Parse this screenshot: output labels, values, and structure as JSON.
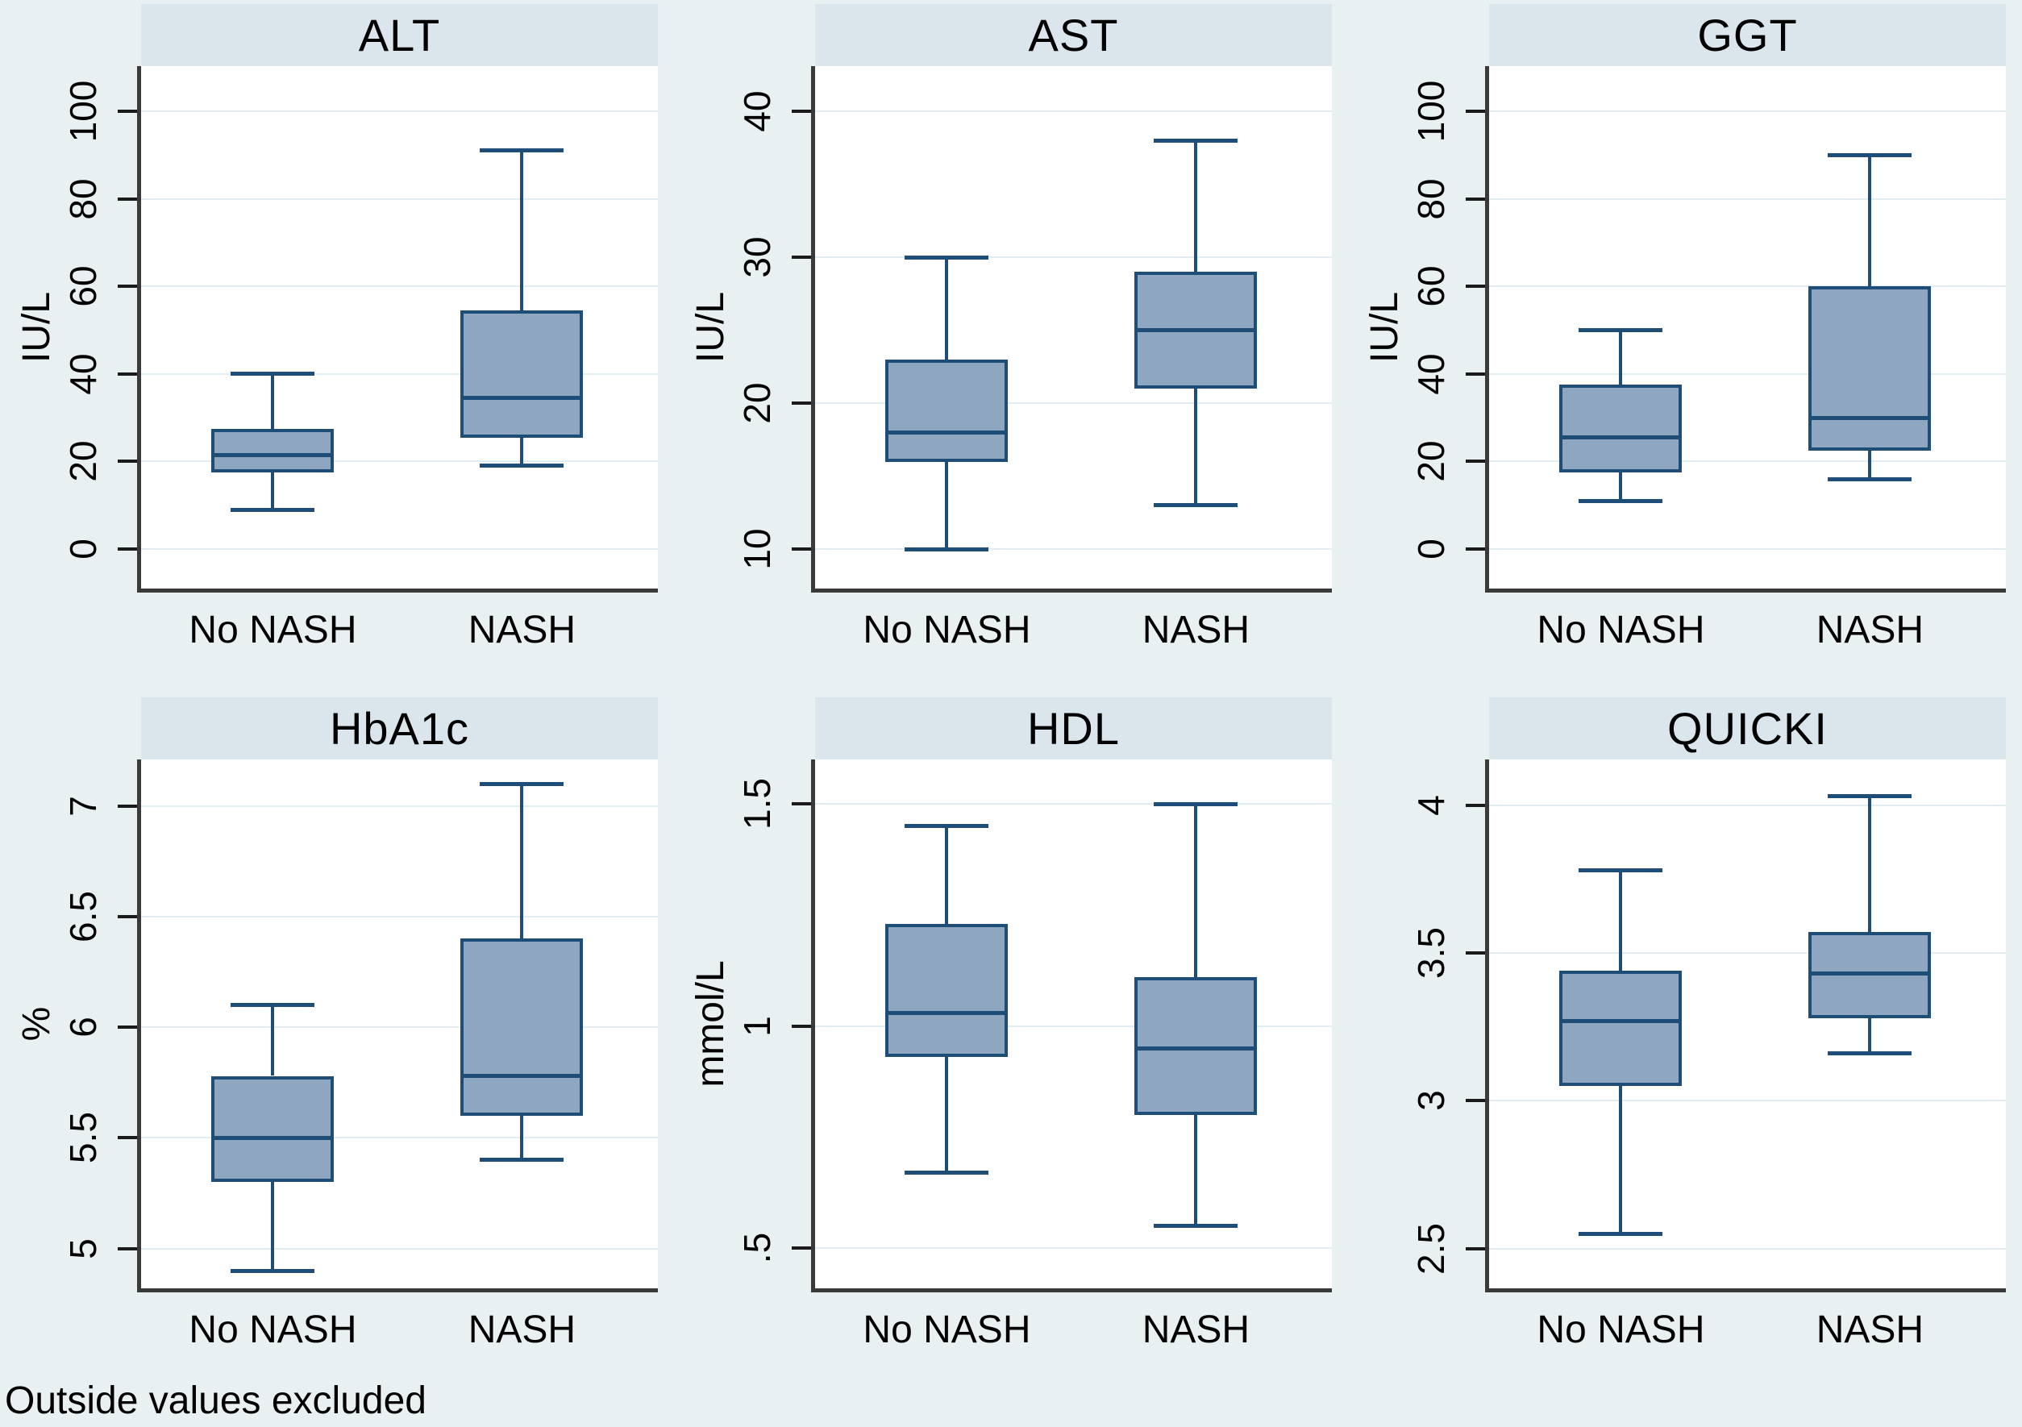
{
  "note": "Outside values excluded",
  "group_labels": [
    "No NASH",
    "NASH"
  ],
  "colors": {
    "page_bg": "#e9f0f2",
    "band_bg": "#dae6ec",
    "plot_bg": "#ffffff",
    "grid": "#e2edf2",
    "axis": "#3a3a3a",
    "tick": "#1a1a1a",
    "box_fill": "#8fa6c0",
    "box_stroke": "#1e4d78",
    "text": "#000000"
  },
  "chart_data": [
    {
      "type": "box",
      "title": "ALT",
      "ylabel": "IU/L",
      "ylim": [
        -9,
        110.3
      ],
      "grid": true,
      "yticks": [
        {
          "v": 0,
          "label": "0"
        },
        {
          "v": 20,
          "label": "20"
        },
        {
          "v": 40,
          "label": "40"
        },
        {
          "v": 60,
          "label": "60"
        },
        {
          "v": 80,
          "label": "80"
        },
        {
          "v": 100,
          "label": "100"
        }
      ],
      "groups": [
        {
          "label": "No NASH",
          "whisker_low": 9,
          "q1": 17.5,
          "median": 21.5,
          "q3": 27.5,
          "whisker_high": 40
        },
        {
          "label": "NASH",
          "whisker_low": 19,
          "q1": 25.5,
          "median": 34.5,
          "q3": 54.5,
          "whisker_high": 91
        }
      ]
    },
    {
      "type": "box",
      "title": "AST",
      "ylabel": "IU/L",
      "ylim": [
        7.3,
        43.1
      ],
      "grid": true,
      "yticks": [
        {
          "v": 10,
          "label": "10"
        },
        {
          "v": 20,
          "label": "20"
        },
        {
          "v": 30,
          "label": "30"
        },
        {
          "v": 40,
          "label": "40"
        }
      ],
      "groups": [
        {
          "label": "No NASH",
          "whisker_low": 10,
          "q1": 16,
          "median": 18,
          "q3": 23,
          "whisker_high": 30
        },
        {
          "label": "NASH",
          "whisker_low": 13,
          "q1": 21,
          "median": 25,
          "q3": 29,
          "whisker_high": 38
        }
      ]
    },
    {
      "type": "box",
      "title": "GGT",
      "ylabel": "IU/L",
      "ylim": [
        -9,
        110.3
      ],
      "grid": true,
      "yticks": [
        {
          "v": 0,
          "label": "0"
        },
        {
          "v": 20,
          "label": "20"
        },
        {
          "v": 40,
          "label": "40"
        },
        {
          "v": 60,
          "label": "60"
        },
        {
          "v": 80,
          "label": "80"
        },
        {
          "v": 100,
          "label": "100"
        }
      ],
      "groups": [
        {
          "label": "No NASH",
          "whisker_low": 11,
          "q1": 17.5,
          "median": 25.5,
          "q3": 37.5,
          "whisker_high": 50
        },
        {
          "label": "NASH",
          "whisker_low": 16,
          "q1": 22.5,
          "median": 30,
          "q3": 60,
          "whisker_high": 90
        }
      ]
    },
    {
      "type": "box",
      "title": "HbA1c",
      "ylabel": "%",
      "ylim": [
        4.82,
        7.21
      ],
      "grid": true,
      "yticks": [
        {
          "v": 5,
          "label": "5"
        },
        {
          "v": 5.5,
          "label": "5.5"
        },
        {
          "v": 6,
          "label": "6"
        },
        {
          "v": 6.5,
          "label": "6.5"
        },
        {
          "v": 7,
          "label": "7"
        }
      ],
      "groups": [
        {
          "label": "No NASH",
          "whisker_low": 4.9,
          "q1": 5.3,
          "median": 5.5,
          "q3": 5.78,
          "whisker_high": 6.1
        },
        {
          "label": "NASH",
          "whisker_low": 5.4,
          "q1": 5.6,
          "median": 5.78,
          "q3": 6.4,
          "whisker_high": 7.1
        }
      ]
    },
    {
      "type": "box",
      "title": "HDL",
      "ylabel": "mmol/L",
      "ylim": [
        0.41,
        1.6
      ],
      "grid": true,
      "yticks": [
        {
          "v": 0.5,
          "label": ".5"
        },
        {
          "v": 1,
          "label": "1"
        },
        {
          "v": 1.5,
          "label": "1.5"
        }
      ],
      "groups": [
        {
          "label": "No NASH",
          "whisker_low": 0.67,
          "q1": 0.93,
          "median": 1.03,
          "q3": 1.23,
          "whisker_high": 1.45
        },
        {
          "label": "NASH",
          "whisker_low": 0.55,
          "q1": 0.8,
          "median": 0.95,
          "q3": 1.11,
          "whisker_high": 1.5
        }
      ]
    },
    {
      "type": "box",
      "title": "QUICKI",
      "ylabel": "",
      "ylim": [
        2.365,
        4.155
      ],
      "grid": true,
      "yticks": [
        {
          "v": 2.5,
          "label": "2.5"
        },
        {
          "v": 3,
          "label": "3"
        },
        {
          "v": 3.5,
          "label": "3.5"
        },
        {
          "v": 4,
          "label": "4"
        }
      ],
      "groups": [
        {
          "label": "No NASH",
          "whisker_low": 2.55,
          "q1": 3.05,
          "median": 3.27,
          "q3": 3.44,
          "whisker_high": 3.78
        },
        {
          "label": "NASH",
          "whisker_low": 3.16,
          "q1": 3.28,
          "median": 3.43,
          "q3": 3.57,
          "whisker_high": 4.03
        }
      ]
    }
  ]
}
